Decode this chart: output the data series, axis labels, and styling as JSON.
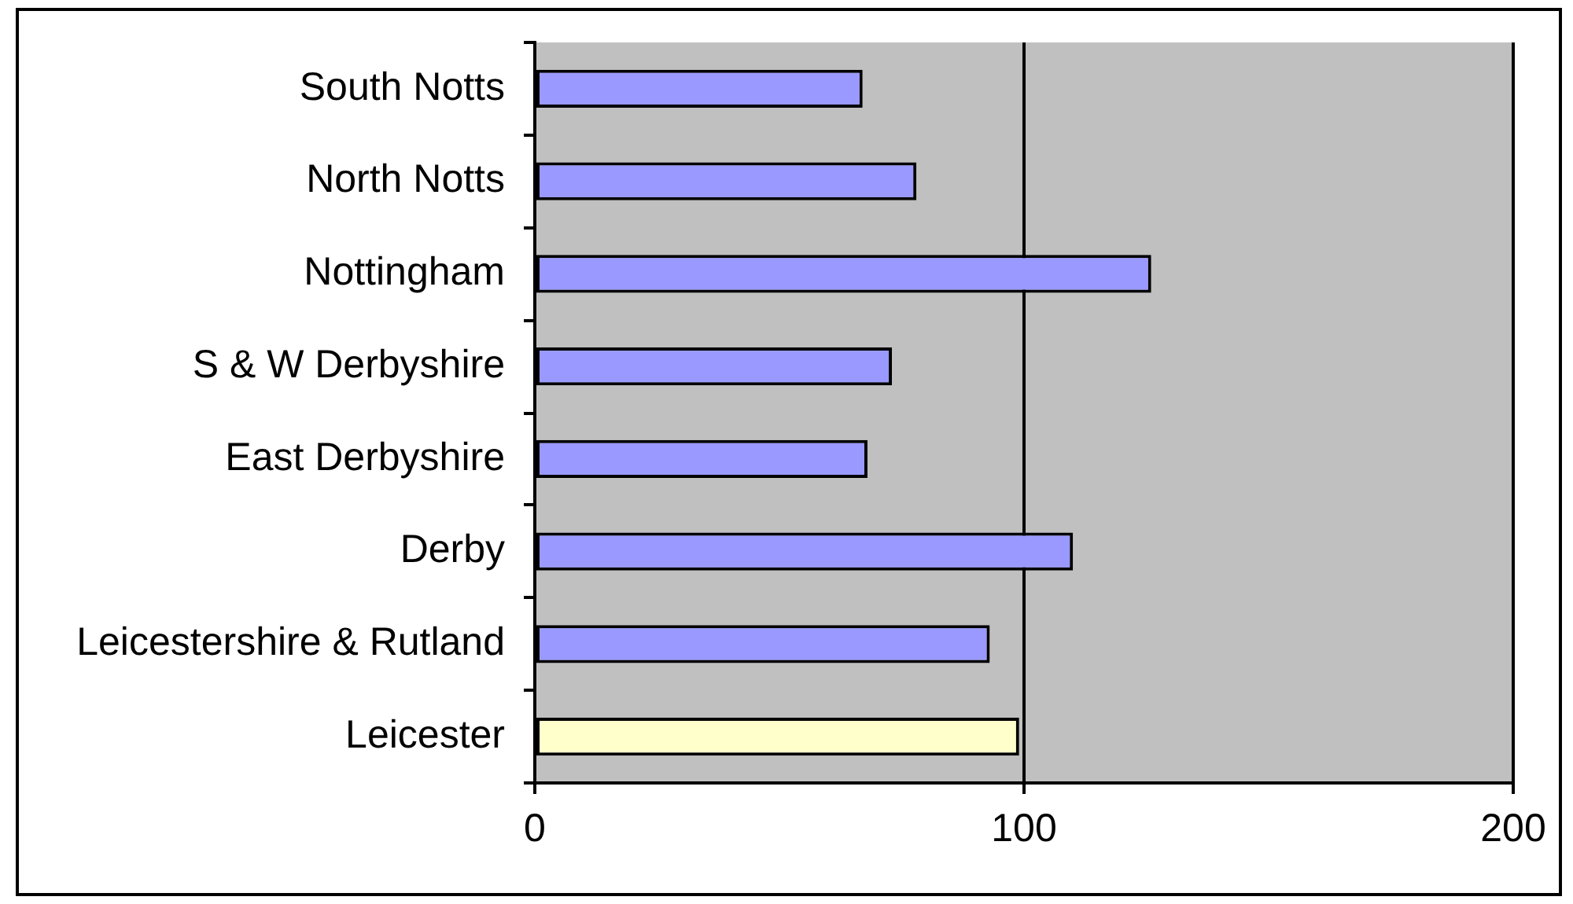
{
  "chart_data": {
    "type": "bar",
    "orientation": "horizontal",
    "categories": [
      "South Notts",
      "North Notts",
      "Nottingham",
      "S & W Derbyshire",
      "East Derbyshire",
      "Derby",
      "Leicestershire & Rutland",
      "Leicester"
    ],
    "values": [
      67,
      78,
      126,
      73,
      68,
      110,
      93,
      99
    ],
    "colors": [
      "#9999ff",
      "#9999ff",
      "#9999ff",
      "#9999ff",
      "#9999ff",
      "#9999ff",
      "#9999ff",
      "#ffffcc"
    ],
    "xlim": [
      0,
      200
    ],
    "xticks": [
      0,
      100,
      200
    ],
    "grid": "x"
  }
}
